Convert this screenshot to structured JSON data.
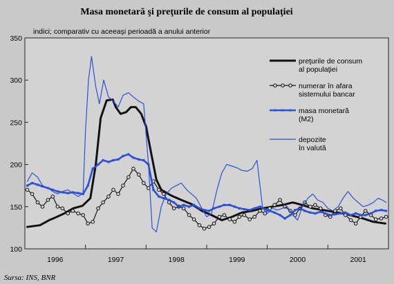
{
  "chart_data": {
    "type": "line",
    "title": "Masa monetară şi preţurile de consum al populaţiei",
    "subtitle": "indici; comparativ cu aceeaşi perioadă a anului anterior",
    "source": "Sursa: INS, BNR",
    "ylim": [
      100,
      350
    ],
    "yticks": [
      100,
      150,
      200,
      250,
      300,
      350
    ],
    "xlim": [
      1995.5,
      2001.5
    ],
    "xticks": [
      {
        "label": "1996",
        "x": 1996.0
      },
      {
        "label": "1997",
        "x": 1997.0
      },
      {
        "label": "1998",
        "x": 1998.0
      },
      {
        "label": "1999",
        "x": 1999.0
      },
      {
        "label": "2000",
        "x": 2000.0
      },
      {
        "label": "2001",
        "x": 2001.0
      }
    ],
    "year_dividers": [
      1996.5,
      1997.5,
      1998.5,
      1999.5,
      2000.5
    ],
    "grid": false,
    "legend_position": "right",
    "series": [
      {
        "name": "preţurile de consum al populaţiei",
        "legend_lines": [
          "preţurile de consum",
          "al populaţiei"
        ],
        "color": "#111111",
        "width": 3,
        "marker": "none",
        "x": [
          1995.54,
          1995.75,
          1995.9,
          1996.0,
          1996.15,
          1996.3,
          1996.45,
          1996.58,
          1996.67,
          1996.75,
          1996.85,
          1996.95,
          1997.0,
          1997.08,
          1997.17,
          1997.25,
          1997.33,
          1997.42,
          1997.5,
          1997.58,
          1997.67,
          1997.75,
          1997.92,
          1998.08,
          1998.25,
          1998.42,
          1998.58,
          1998.75,
          1998.92,
          1999.08,
          1999.25,
          1999.42,
          1999.58,
          1999.75,
          1999.92,
          2000.08,
          2000.25,
          2000.42,
          2000.58,
          2000.75,
          2000.92,
          2001.08,
          2001.25,
          2001.45
        ],
        "y": [
          126,
          128,
          134,
          137,
          142,
          148,
          151,
          160,
          200,
          255,
          276,
          277,
          268,
          260,
          262,
          268,
          268,
          260,
          245,
          215,
          182,
          170,
          163,
          158,
          153,
          145,
          140,
          134,
          138,
          143,
          145,
          148,
          150,
          152,
          155,
          152,
          148,
          146,
          144,
          142,
          139,
          136,
          132,
          130
        ]
      },
      {
        "name": "numerar în afara sistemului bancar",
        "legend_lines": [
          "numerar în afara",
          "sistemului bancar"
        ],
        "color": "#111111",
        "width": 1.2,
        "marker": "circle",
        "x": [
          1995.54,
          1995.62,
          1995.71,
          1995.79,
          1995.88,
          1995.96,
          1996.04,
          1996.12,
          1996.21,
          1996.29,
          1996.38,
          1996.46,
          1996.54,
          1996.62,
          1996.71,
          1996.79,
          1996.88,
          1996.96,
          1997.04,
          1997.12,
          1997.21,
          1997.29,
          1997.38,
          1997.46,
          1997.54,
          1997.62,
          1997.71,
          1997.79,
          1997.88,
          1997.96,
          1998.04,
          1998.12,
          1998.21,
          1998.29,
          1998.38,
          1998.46,
          1998.54,
          1998.62,
          1998.71,
          1998.79,
          1998.88,
          1998.96,
          1999.04,
          1999.12,
          1999.21,
          1999.29,
          1999.38,
          1999.46,
          1999.54,
          1999.62,
          1999.71,
          1999.79,
          1999.88,
          1999.96,
          2000.04,
          2000.12,
          2000.21,
          2000.29,
          2000.38,
          2000.46,
          2000.54,
          2000.62,
          2000.71,
          2000.79,
          2000.88,
          2000.96,
          2001.04,
          2001.12,
          2001.21,
          2001.29,
          2001.38,
          2001.46
        ],
        "y": [
          170,
          165,
          155,
          150,
          158,
          162,
          150,
          148,
          142,
          145,
          142,
          140,
          130,
          132,
          148,
          155,
          162,
          170,
          165,
          175,
          185,
          195,
          188,
          178,
          172,
          180,
          170,
          165,
          155,
          148,
          150,
          148,
          140,
          135,
          128,
          124,
          126,
          130,
          138,
          140,
          135,
          132,
          138,
          140,
          135,
          138,
          145,
          142,
          148,
          152,
          158,
          150,
          145,
          140,
          148,
          155,
          150,
          152,
          148,
          140,
          138,
          145,
          148,
          140,
          134,
          130,
          138,
          145,
          140,
          135,
          136,
          138
        ]
      },
      {
        "name": "masa monetară (M2)",
        "legend_lines": [
          "masa monetară",
          "(M2)"
        ],
        "color": "#2b4fd6",
        "width": 2.6,
        "marker": "square",
        "x": [
          1995.54,
          1995.62,
          1995.71,
          1995.79,
          1995.88,
          1995.96,
          1996.04,
          1996.12,
          1996.21,
          1996.29,
          1996.38,
          1996.46,
          1996.54,
          1996.62,
          1996.71,
          1996.79,
          1996.88,
          1996.96,
          1997.04,
          1997.12,
          1997.21,
          1997.29,
          1997.38,
          1997.46,
          1997.54,
          1997.62,
          1997.71,
          1997.79,
          1997.88,
          1997.96,
          1998.04,
          1998.12,
          1998.21,
          1998.29,
          1998.38,
          1998.46,
          1998.54,
          1998.62,
          1998.71,
          1998.79,
          1998.88,
          1998.96,
          1999.04,
          1999.12,
          1999.21,
          1999.29,
          1999.38,
          1999.46,
          1999.54,
          1999.62,
          1999.71,
          1999.79,
          1999.88,
          1999.96,
          2000.04,
          2000.12,
          2000.21,
          2000.29,
          2000.38,
          2000.46,
          2000.54,
          2000.62,
          2000.71,
          2000.79,
          2000.88,
          2000.96,
          2001.04,
          2001.12,
          2001.21,
          2001.29,
          2001.38,
          2001.46
        ],
        "y": [
          175,
          178,
          176,
          174,
          172,
          170,
          168,
          167,
          166,
          167,
          166,
          165,
          175,
          195,
          200,
          205,
          203,
          205,
          206,
          210,
          212,
          208,
          206,
          205,
          200,
          170,
          162,
          160,
          158,
          155,
          150,
          152,
          150,
          152,
          148,
          146,
          145,
          148,
          150,
          152,
          152,
          150,
          148,
          147,
          146,
          148,
          150,
          147,
          145,
          143,
          140,
          136,
          140,
          146,
          148,
          145,
          143,
          142,
          144,
          142,
          140,
          141,
          142,
          143,
          140,
          142,
          140,
          140,
          142,
          145,
          146,
          145
        ]
      },
      {
        "name": "depozite în valută",
        "legend_lines": [
          "depozite",
          "în valută"
        ],
        "color": "#2b4fd6",
        "width": 1.2,
        "marker": "none",
        "x": [
          1995.54,
          1995.62,
          1995.71,
          1995.79,
          1995.88,
          1995.96,
          1996.04,
          1996.12,
          1996.21,
          1996.29,
          1996.38,
          1996.46,
          1996.5,
          1996.55,
          1996.6,
          1996.67,
          1996.73,
          1996.8,
          1996.88,
          1996.96,
          1997.04,
          1997.12,
          1997.21,
          1997.29,
          1997.38,
          1997.46,
          1997.54,
          1997.6,
          1997.67,
          1997.75,
          1997.83,
          1997.92,
          1998.0,
          1998.08,
          1998.17,
          1998.25,
          1998.33,
          1998.42,
          1998.5,
          1998.58,
          1998.67,
          1998.75,
          1998.83,
          1998.92,
          1999.0,
          1999.08,
          1999.17,
          1999.25,
          1999.33,
          1999.42,
          1999.46,
          1999.5,
          1999.58,
          1999.67,
          1999.75,
          1999.83,
          1999.92,
          2000.0,
          2000.08,
          2000.17,
          2000.25,
          2000.33,
          2000.42,
          2000.5,
          2000.58,
          2000.67,
          2000.75,
          2000.83,
          2000.92,
          2001.0,
          2001.08,
          2001.17,
          2001.25,
          2001.33,
          2001.42,
          2001.46
        ],
        "y": [
          180,
          190,
          185,
          175,
          172,
          168,
          165,
          168,
          170,
          166,
          162,
          166,
          240,
          300,
          328,
          292,
          272,
          300,
          280,
          275,
          268,
          282,
          285,
          280,
          275,
          272,
          200,
          125,
          120,
          150,
          165,
          172,
          175,
          178,
          170,
          165,
          160,
          148,
          138,
          142,
          170,
          190,
          200,
          198,
          196,
          193,
          192,
          195,
          205,
          150,
          145,
          142,
          148,
          146,
          148,
          150,
          140,
          134,
          150,
          160,
          165,
          158,
          155,
          148,
          145,
          150,
          160,
          168,
          160,
          155,
          150,
          152,
          155,
          160,
          157,
          155
        ]
      }
    ]
  }
}
